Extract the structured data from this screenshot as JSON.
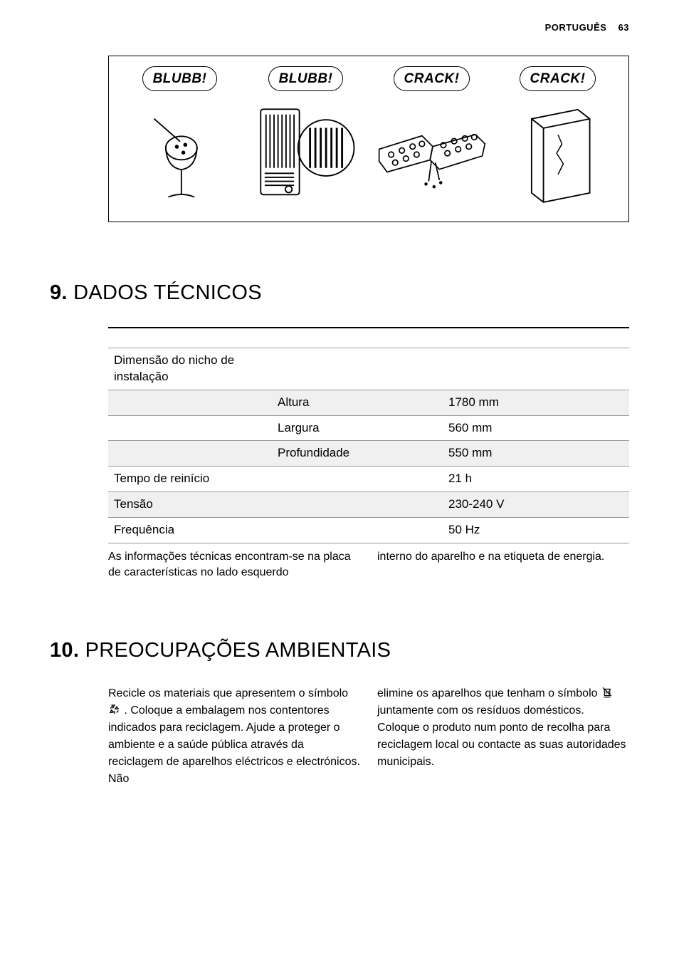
{
  "header": {
    "lang": "PORTUGUÊS",
    "page": "63"
  },
  "diagram": {
    "bubbles": [
      "BLUBB!",
      "BLUBB!",
      "CRACK!",
      "CRACK!"
    ]
  },
  "section9": {
    "number": "9.",
    "title": "DADOS TÉCNICOS",
    "rows": [
      {
        "c1": "Dimensão do nicho de instalação",
        "c2": "",
        "c3": "",
        "shade": false
      },
      {
        "c1": "",
        "c2": "Altura",
        "c3": "1780 mm",
        "shade": true
      },
      {
        "c1": "",
        "c2": "Largura",
        "c3": "560 mm",
        "shade": false
      },
      {
        "c1": "",
        "c2": "Profundidade",
        "c3": "550 mm",
        "shade": true
      },
      {
        "c1": "Tempo de reinício",
        "c2": "",
        "c3": "21 h",
        "shade": false
      },
      {
        "c1": "Tensão",
        "c2": "",
        "c3": "230-240 V",
        "shade": true
      },
      {
        "c1": "Frequência",
        "c2": "",
        "c3": "50 Hz",
        "shade": false
      }
    ],
    "note_left": "As informações técnicas encontram-se na placa de características no lado esquerdo",
    "note_right": "interno do aparelho e na etiqueta de energia."
  },
  "section10": {
    "number": "10.",
    "title": "PREOCUPAÇÕES AMBIENTAIS",
    "left_a": "Recicle os materiais que apresentem o símbolo ",
    "left_b": " . Coloque a embalagem nos contentores indicados para reciclagem. Ajude a proteger o ambiente e a saúde pública através da reciclagem de aparelhos eléctricos e electrónicos. Não",
    "right_a": "elimine os aparelhos que tenham o símbolo ",
    "right_b": " juntamente com os resíduos domésticos. Coloque o produto num ponto de recolha para reciclagem local ou contacte as suas autoridades municipais."
  }
}
